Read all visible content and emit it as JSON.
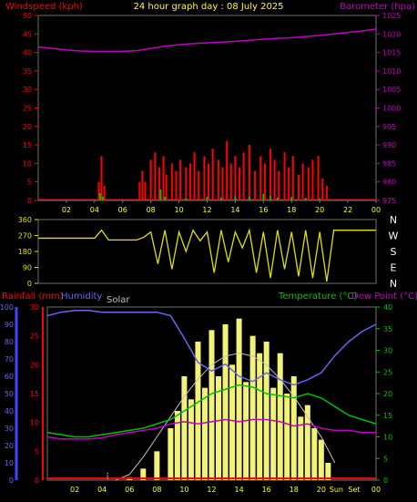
{
  "title": "24 hour graph day : 08 July 2025",
  "colors": {
    "background": "#000000",
    "frame": "#707070",
    "wind": "#ff0000",
    "gust": "#00c000",
    "baro": "#c000c0",
    "dir": "#e0e000",
    "rain": "#ff0000",
    "humidity": "#6666ee",
    "solar": "#ffff80",
    "solar_theory": "#c0c0c0",
    "temp": "#00c000",
    "dew": "#c000c0",
    "axis_text": "#ffff00",
    "axis_accent_blue": "#4444ff"
  },
  "chart_data": [
    {
      "id": "wind-baro",
      "type": "bar",
      "left_axis_label": "Windspeed (kph)",
      "right_axis_label": "Barometer (hpa)",
      "left_ticks": [
        "0",
        "5",
        "10",
        "15",
        "20",
        "25",
        "30",
        "35",
        "40",
        "45",
        "50"
      ],
      "right_ticks": [
        "975",
        "980",
        "985",
        "990",
        "995",
        "1000",
        "1005",
        "1010",
        "1015",
        "1020",
        "1025"
      ],
      "x_ticks": [
        "02",
        "04",
        "06",
        "08",
        "10",
        "12",
        "14",
        "16",
        "18",
        "20",
        "22",
        "00"
      ],
      "ylim_left": [
        0,
        50
      ],
      "ylim_right": [
        975,
        1025
      ],
      "barometer": {
        "x": [
          0,
          1,
          2,
          3,
          4,
          5,
          6,
          7,
          8,
          9,
          10,
          11,
          12,
          13,
          14,
          15,
          16,
          17,
          18,
          19,
          20,
          21,
          22,
          23,
          24
        ],
        "values": [
          1016.5,
          1016.1,
          1015.7,
          1015.4,
          1015.3,
          1015.3,
          1015.3,
          1015.5,
          1016.1,
          1016.7,
          1017.1,
          1017.4,
          1017.6,
          1017.8,
          1018.0,
          1018.3,
          1018.6,
          1018.8,
          1019.0,
          1019.3,
          1019.6,
          1020.0,
          1020.4,
          1020.8,
          1021.3
        ]
      },
      "wind": {
        "x": [
          4.3,
          4.5,
          4.7,
          7.2,
          7.4,
          7.6,
          8.0,
          8.3,
          8.6,
          8.9,
          9.1,
          9.5,
          9.8,
          10.1,
          10.5,
          10.8,
          11.1,
          11.4,
          11.8,
          12.1,
          12.4,
          12.8,
          13.1,
          13.4,
          13.7,
          14.0,
          14.3,
          14.6,
          15.0,
          15.4,
          15.8,
          16.1,
          16.5,
          16.8,
          17.1,
          17.5,
          17.8,
          18.1,
          18.5,
          18.8,
          19.2,
          19.5,
          19.9,
          20.2,
          20.5
        ],
        "values": [
          5,
          12,
          4,
          5,
          8,
          5,
          11,
          13,
          9,
          12,
          7,
          10,
          8,
          11,
          9,
          10,
          13,
          8,
          12,
          10,
          14,
          11,
          9,
          16,
          10,
          12,
          9,
          13,
          15,
          8,
          12,
          10,
          14,
          11,
          8,
          13,
          9,
          12,
          7,
          10,
          9,
          11,
          12,
          6,
          4
        ]
      },
      "gust": {
        "x": [
          4.4,
          4.6,
          8.7,
          9.0,
          10.5,
          12.0,
          13.0,
          14.0,
          15.0,
          16.0,
          16.5,
          17.0,
          18.0,
          19.0,
          20.0
        ],
        "values": [
          2,
          1,
          3,
          1,
          0.5,
          1,
          0.8,
          1.2,
          1,
          1.8,
          1.2,
          0.8,
          1,
          0.7,
          0.5
        ]
      }
    },
    {
      "id": "wind-direction",
      "type": "line",
      "left_ticks": [
        "0",
        "90",
        "180",
        "270",
        "360"
      ],
      "right_labels": [
        "N",
        "W",
        "S",
        "E",
        "N"
      ],
      "ylim": [
        0,
        360
      ],
      "x": [
        0,
        1,
        2,
        3,
        4,
        4.5,
        5,
        6,
        7,
        7.5,
        8,
        8.5,
        9,
        9.5,
        10,
        10.5,
        11,
        11.5,
        12,
        12.5,
        13,
        13.5,
        14,
        14.5,
        15,
        15.5,
        16,
        16.5,
        17,
        17.5,
        18,
        18.5,
        19,
        19.5,
        20,
        20.5,
        21,
        22,
        23,
        24
      ],
      "values": [
        255,
        255,
        255,
        255,
        255,
        300,
        245,
        245,
        245,
        260,
        290,
        110,
        300,
        80,
        290,
        180,
        300,
        240,
        290,
        60,
        300,
        120,
        290,
        200,
        300,
        60,
        290,
        30,
        300,
        80,
        290,
        40,
        300,
        30,
        290,
        10,
        300,
        300,
        300,
        300
      ]
    },
    {
      "id": "rain-hum-temp-solar",
      "type": "line",
      "rain_label": "Rainfall (mm)",
      "humidity_label": "Humidity",
      "solar_label": "Solar",
      "temp_label": "Temperature (°C)",
      "dew_label": "Dew Point (°C)",
      "humidity_ticks": [
        "0",
        "10",
        "20",
        "30",
        "40",
        "50",
        "60",
        "70",
        "80",
        "90",
        "100"
      ],
      "rain_ticks": [
        "0",
        "5",
        "10",
        "15",
        "20",
        "25",
        "30"
      ],
      "temp_ticks": [
        "0",
        "5",
        "10",
        "15",
        "20",
        "25",
        "30",
        "35",
        "40"
      ],
      "x_ticks": [
        "02",
        "04",
        "06",
        "08",
        "10",
        "12",
        "14",
        "16",
        "18",
        "20",
        "Sun",
        "Set",
        "00"
      ],
      "humidity": {
        "x": [
          0,
          1,
          2,
          3,
          4,
          5,
          6,
          7,
          8,
          9,
          10,
          11,
          12,
          13,
          14,
          15,
          16,
          17,
          18,
          19,
          20,
          21,
          22,
          23,
          24
        ],
        "values": [
          95,
          97,
          98,
          98,
          97,
          97,
          97,
          97,
          97,
          95,
          82,
          68,
          63,
          67,
          60,
          57,
          62,
          58,
          55,
          58,
          62,
          72,
          80,
          86,
          90
        ]
      },
      "temperature": {
        "x": [
          0,
          1,
          2,
          3,
          4,
          5,
          6,
          7,
          8,
          9,
          10,
          11,
          12,
          13,
          14,
          15,
          16,
          17,
          18,
          19,
          20,
          21,
          22,
          23,
          24
        ],
        "values": [
          11,
          10.5,
          10,
          10,
          10.5,
          11,
          11.5,
          12,
          13,
          14,
          16,
          18,
          20,
          21,
          22,
          21.5,
          20,
          19.5,
          19,
          20,
          19,
          17,
          15,
          14,
          13
        ]
      },
      "dew_point": {
        "x": [
          0,
          1,
          2,
          3,
          4,
          5,
          6,
          7,
          8,
          9,
          10,
          11,
          12,
          13,
          14,
          15,
          16,
          17,
          18,
          19,
          20,
          21,
          22,
          23,
          24
        ],
        "values": [
          10,
          9.5,
          9.5,
          9.5,
          9.8,
          10.5,
          11,
          11.5,
          12,
          13,
          13.5,
          13,
          13.5,
          14,
          13.5,
          14,
          14,
          13.5,
          12.5,
          13,
          12,
          11.5,
          11.5,
          11,
          11
        ]
      },
      "solar_theory": {
        "x": [
          5,
          6,
          7,
          8,
          9,
          10,
          11,
          12,
          13,
          14,
          15,
          16,
          17,
          18,
          19,
          20,
          21
        ],
        "values": [
          0,
          1,
          4,
          7.5,
          11,
          14.5,
          17.5,
          20,
          21.5,
          22,
          21.5,
          20,
          17.5,
          14.5,
          11,
          7.5,
          3
        ]
      },
      "solar": {
        "x": [
          6,
          7,
          8,
          9,
          9.5,
          10,
          10.5,
          11,
          11.5,
          12,
          12.5,
          13,
          13.5,
          14,
          14.5,
          15,
          15.5,
          16,
          16.5,
          17,
          17.5,
          18,
          18.5,
          19,
          19.5,
          20,
          20.5
        ],
        "values": [
          0.5,
          2,
          5,
          9,
          12,
          18,
          14,
          24,
          16,
          26,
          18,
          27,
          20,
          28,
          17,
          25,
          22,
          24,
          16,
          22,
          15,
          18,
          11,
          13,
          9,
          7,
          3
        ]
      },
      "rain": {
        "x": [
          0,
          24
        ],
        "values": [
          0.3,
          0.3
        ]
      }
    }
  ]
}
